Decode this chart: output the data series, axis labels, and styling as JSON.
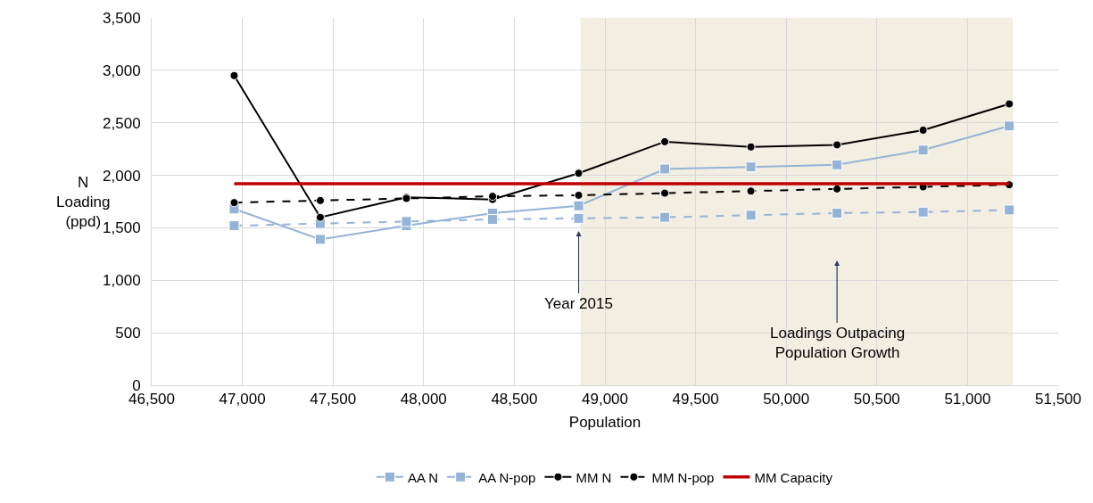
{
  "chart_data": {
    "type": "line",
    "xlabel": "Population",
    "ylabel": "N Loading (ppd)",
    "x": [
      46955,
      47430,
      47905,
      48380,
      48855,
      49330,
      49805,
      50280,
      50755,
      51230
    ],
    "series": [
      {
        "name": "AA N",
        "color": "#95b3d7",
        "marker": "square",
        "line_style": "solid",
        "values": [
          1680,
          1390,
          1520,
          1640,
          1710,
          2060,
          2080,
          2100,
          2240,
          2470
        ]
      },
      {
        "name": "AA N-pop",
        "color": "#95b3d7",
        "marker": "square",
        "line_style": "dashed",
        "values": [
          1520,
          1540,
          1560,
          1580,
          1590,
          1600,
          1620,
          1640,
          1650,
          1670
        ]
      },
      {
        "name": "MM N",
        "color": "#000000",
        "marker": "circle",
        "line_style": "solid",
        "values": [
          2950,
          1600,
          1790,
          1770,
          2020,
          2320,
          2270,
          2290,
          2430,
          2680
        ]
      },
      {
        "name": "MM N-pop",
        "color": "#000000",
        "marker": "circle",
        "line_style": "dashed",
        "values": [
          1740,
          1760,
          1780,
          1800,
          1810,
          1830,
          1850,
          1870,
          1890,
          1910
        ]
      },
      {
        "name": "MM Capacity",
        "color": "#c00000",
        "marker": "none",
        "line_style": "solid",
        "x": [
          46955,
          51230
        ],
        "values": [
          1920,
          1920
        ]
      }
    ],
    "xlim": [
      46500,
      51500
    ],
    "xticks": [
      {
        "value": 46500,
        "label": "46,500"
      },
      {
        "value": 47000,
        "label": "47,000"
      },
      {
        "value": 47500,
        "label": "47,500"
      },
      {
        "value": 48000,
        "label": "48,000"
      },
      {
        "value": 48500,
        "label": "48,500"
      },
      {
        "value": 49000,
        "label": "49,000"
      },
      {
        "value": 49500,
        "label": "49,500"
      },
      {
        "value": 50000,
        "label": "50,000"
      },
      {
        "value": 50500,
        "label": "50,500"
      },
      {
        "value": 51000,
        "label": "51,000"
      },
      {
        "value": 51500,
        "label": "51,500"
      }
    ],
    "ylim": [
      0,
      3500
    ],
    "yticks": [
      0,
      500,
      {
        "value": 1000,
        "label": "1,000"
      },
      {
        "value": 1500,
        "label": "1,500"
      },
      {
        "value": 2000,
        "label": "2,000"
      },
      {
        "value": 2500,
        "label": "2,500"
      },
      {
        "value": 3000,
        "label": "3,000"
      },
      {
        "value": 3500,
        "label": "3,500"
      }
    ],
    "bands": [
      {
        "axis": "x",
        "from": 48865,
        "to": 51250,
        "color": "#f3eee2"
      }
    ],
    "annotations": [
      {
        "text": "Year 2015",
        "x": 48855,
        "y": 1470
      },
      "Loadings Outpacing Population Growth"
    ],
    "grid": true,
    "legend": "bottom"
  }
}
